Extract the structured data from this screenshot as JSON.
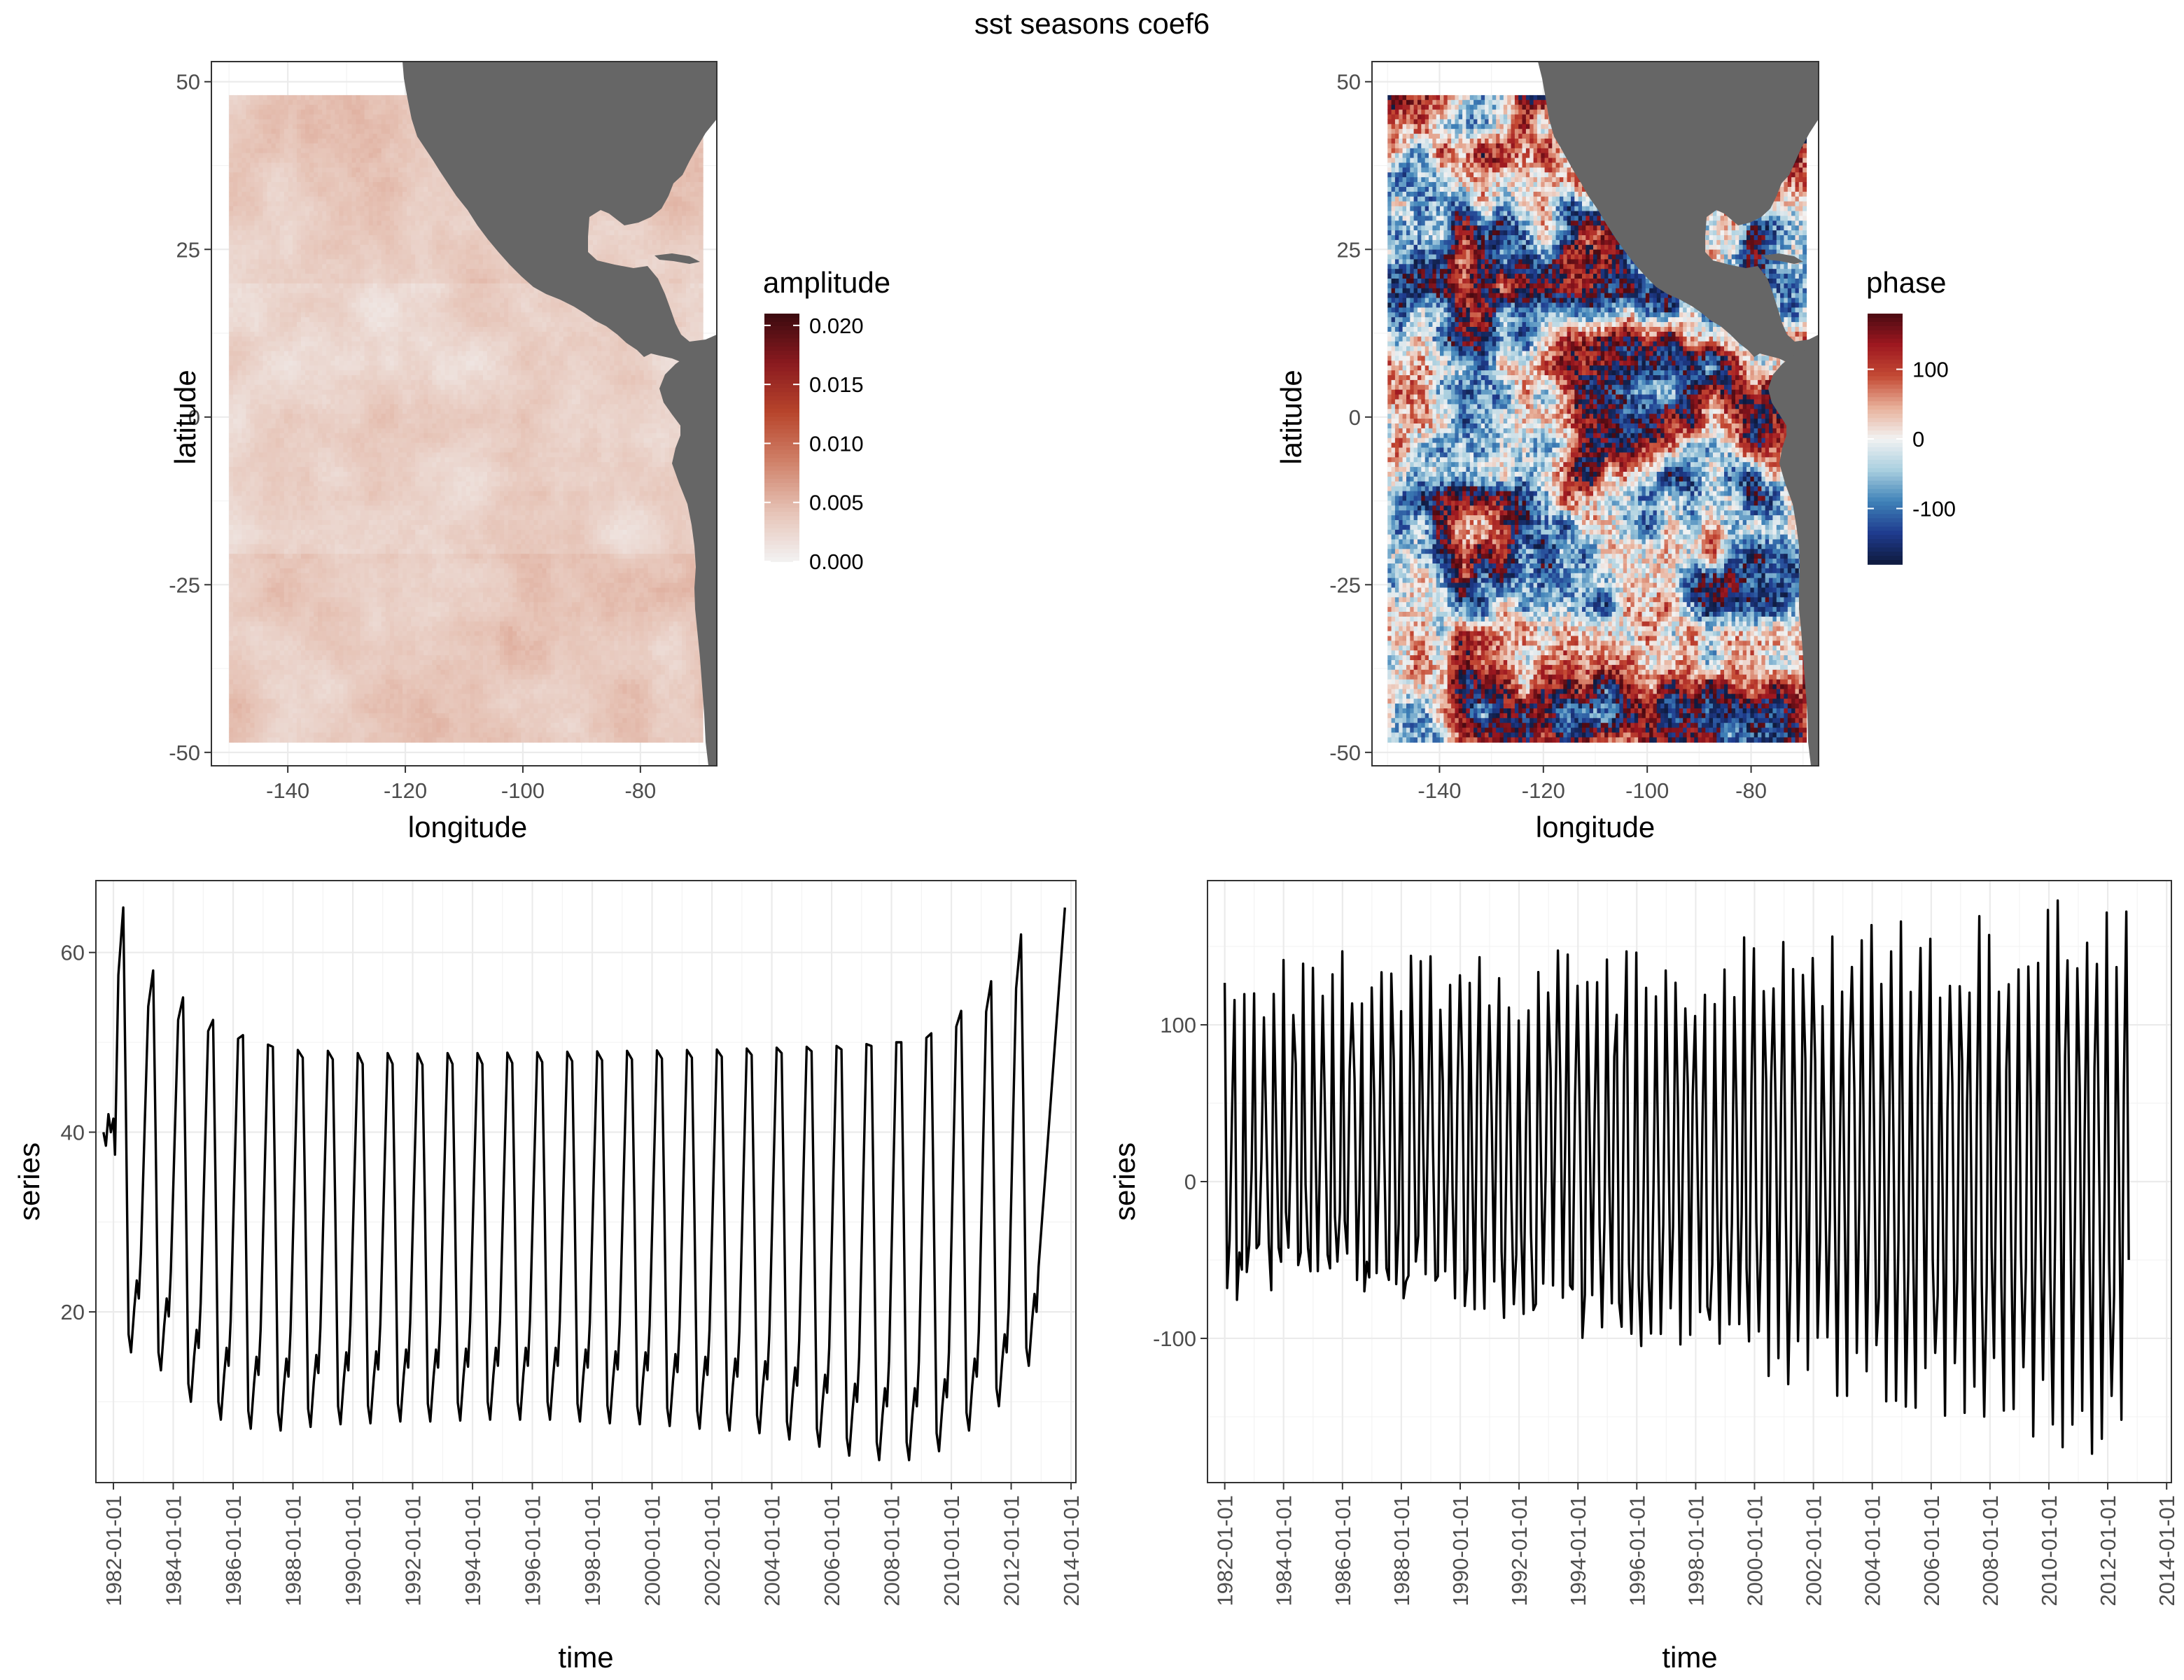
{
  "figure_title": "sst seasons coef6",
  "chart_data": [
    {
      "type": "heatmap",
      "name": "amplitude map",
      "xlabel": "longitude",
      "ylabel": "latitude",
      "xlim": [
        -153,
        -67
      ],
      "ylim": [
        -52,
        53
      ],
      "x_ticks": [
        -140,
        -120,
        -100,
        -80
      ],
      "x_tick_labels": [
        "-140",
        "-120",
        "-100",
        "-80"
      ],
      "y_ticks": [
        50,
        25,
        0,
        -25,
        -50
      ],
      "y_tick_labels": [
        "50",
        "25",
        "0",
        "-25",
        "-50"
      ],
      "grid": true,
      "data_extent": {
        "lon": [
          -150,
          -70
        ],
        "lat": [
          -48,
          48
        ]
      },
      "legend": {
        "title": "amplitude",
        "placement": "right",
        "min": 0,
        "max": 0.021,
        "ticks": [
          0.0,
          0.005,
          0.01,
          0.015,
          0.02
        ],
        "tick_labels": [
          "0.000",
          "0.005",
          "0.010",
          "0.015",
          "0.020"
        ],
        "colors": [
          "#f2f2f2",
          "#e6c3b6",
          "#d0826a",
          "#b8452c",
          "#8a1a1f",
          "#3b0a0f"
        ]
      },
      "typical_value_range": [
        0.001,
        0.005
      ]
    },
    {
      "type": "heatmap",
      "name": "phase map",
      "xlabel": "longitude",
      "ylabel": "latitude",
      "xlim": [
        -153,
        -67
      ],
      "ylim": [
        -52,
        53
      ],
      "x_ticks": [
        -140,
        -120,
        -100,
        -80
      ],
      "x_tick_labels": [
        "-140",
        "-120",
        "-100",
        "-80"
      ],
      "y_ticks": [
        50,
        25,
        0,
        -25,
        -50
      ],
      "y_tick_labels": [
        "50",
        "25",
        "0",
        "-25",
        "-50"
      ],
      "grid": true,
      "data_extent": {
        "lon": [
          -150,
          -70
        ],
        "lat": [
          -48,
          48
        ]
      },
      "legend": {
        "title": "phase",
        "placement": "right",
        "min": -180,
        "max": 180,
        "ticks": [
          100,
          0,
          -100
        ],
        "tick_labels": [
          "100",
          "0",
          "-100"
        ],
        "colors": [
          "#0f1a3d",
          "#1f3c8f",
          "#3f82b8",
          "#a9cfdf",
          "#f2f2f2",
          "#e8b09a",
          "#c44a34",
          "#9e1820",
          "#4a0a12"
        ]
      }
    },
    {
      "type": "line",
      "name": "amplitude series",
      "xlabel": "time",
      "ylabel": "series",
      "xlim": [
        "1981-06-01",
        "2014-03-01"
      ],
      "ylim": [
        1,
        68
      ],
      "y_ticks": [
        20,
        40,
        60
      ],
      "y_tick_labels": [
        "20",
        "40",
        "60"
      ],
      "x_ticks": [
        "1982-01-01",
        "1984-01-01",
        "1986-01-01",
        "1988-01-01",
        "1990-01-01",
        "1992-01-01",
        "1994-01-01",
        "1996-01-01",
        "1998-01-01",
        "2000-01-01",
        "2002-01-01",
        "2004-01-01",
        "2006-01-01",
        "2008-01-01",
        "2010-01-01",
        "2012-01-01",
        "2014-01-01"
      ],
      "grid": true,
      "year_peaks": [
        65,
        58,
        55,
        52.5,
        50.8,
        49.5,
        48.3,
        48.1,
        47.6,
        47.6,
        47.5,
        47.6,
        47.6,
        47.7,
        47.8,
        47.9,
        48,
        48.1,
        48.2,
        48.3,
        48.4,
        48.6,
        48.8,
        49,
        49.2,
        49.6,
        50,
        51,
        53.5,
        56.8,
        62,
        65
      ],
      "year_troughs": [
        15.5,
        13.5,
        10,
        8,
        7,
        6.8,
        7.2,
        7.5,
        7.6,
        7.8,
        7.8,
        7.9,
        8,
        8,
        8,
        7.8,
        7.6,
        7.5,
        7.3,
        7,
        6.8,
        6.5,
        5.8,
        5,
        4,
        3.5,
        3.5,
        4.5,
        6.8,
        9.5,
        14,
        19
      ]
    },
    {
      "type": "line",
      "name": "phase series",
      "xlabel": "time",
      "ylabel": "series",
      "xlim": [
        "1981-06-01",
        "2014-03-01"
      ],
      "ylim": [
        -192,
        192
      ],
      "y_ticks": [
        100,
        0,
        -100
      ],
      "y_tick_labels": [
        "100",
        "0",
        "-100"
      ],
      "x_ticks": [
        "1982-01-01",
        "1984-01-01",
        "1986-01-01",
        "1988-01-01",
        "1990-01-01",
        "1992-01-01",
        "1994-01-01",
        "1996-01-01",
        "1998-01-01",
        "2000-01-01",
        "2002-01-01",
        "2004-01-01",
        "2006-01-01",
        "2008-01-01",
        "2010-01-01",
        "2012-01-01",
        "2014-01-01"
      ],
      "grid": true,
      "value_range": [
        -180,
        180
      ]
    }
  ]
}
